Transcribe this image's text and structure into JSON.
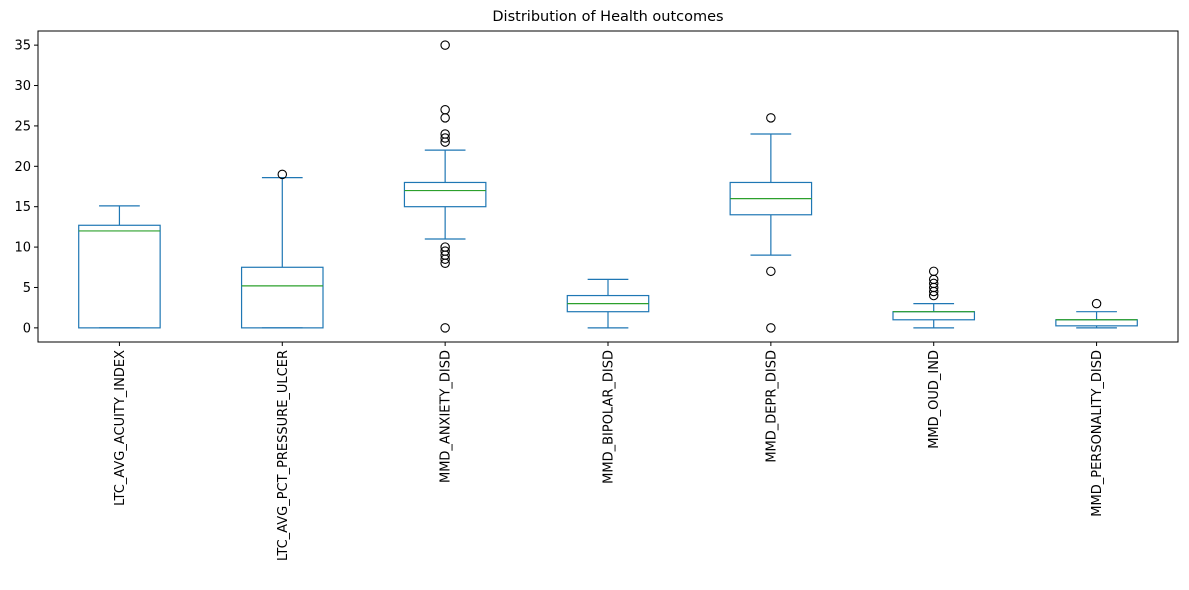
{
  "chart_data": {
    "type": "box",
    "title": "Distribution of Health outcomes",
    "xlabel": "",
    "ylabel": "",
    "ylim": [
      -1.75,
      36.75
    ],
    "yticks": [
      0,
      5,
      10,
      15,
      20,
      25,
      30,
      35
    ],
    "ytick_labels": [
      "0",
      "5",
      "10",
      "15",
      "20",
      "25",
      "30",
      "35"
    ],
    "grid": false,
    "legend": "none",
    "colors": {
      "box": "#1f77b4",
      "median": "#2ca02c",
      "flier": "#000000"
    },
    "categories": [
      "LTC_AVG_ACUITY_INDEX",
      "LTC_AVG_PCT_PRESSURE_ULCER",
      "MMD_ANXIETY_DISD",
      "MMD_BIPOLAR_DISD",
      "MMD_DEPR_DISD",
      "MMD_OUD_IND",
      "MMD_PERSONALITY_DISD"
    ],
    "boxes": [
      {
        "whislo": 0,
        "q1": 0,
        "med": 12,
        "q3": 12.7,
        "whishi": 15.1,
        "fliers": []
      },
      {
        "whislo": 0,
        "q1": 0,
        "med": 5.2,
        "q3": 7.5,
        "whishi": 18.6,
        "fliers": [
          19
        ]
      },
      {
        "whislo": 11,
        "q1": 15,
        "med": 17,
        "q3": 18,
        "whishi": 22,
        "fliers": [
          35,
          27,
          26,
          24,
          23.5,
          23,
          10,
          9.5,
          9,
          8.5,
          8,
          0
        ]
      },
      {
        "whislo": 0,
        "q1": 2,
        "med": 3,
        "q3": 4,
        "whishi": 6,
        "fliers": []
      },
      {
        "whislo": 9,
        "q1": 14,
        "med": 16,
        "q3": 18,
        "whishi": 24,
        "fliers": [
          26,
          7,
          0
        ]
      },
      {
        "whislo": 0,
        "q1": 1,
        "med": 2,
        "q3": 2,
        "whishi": 3,
        "fliers": [
          7,
          6,
          5.5,
          5,
          4.5,
          4
        ]
      },
      {
        "whislo": 0,
        "q1": 0.25,
        "med": 1,
        "q3": 1,
        "whishi": 2,
        "fliers": [
          3
        ]
      }
    ]
  }
}
